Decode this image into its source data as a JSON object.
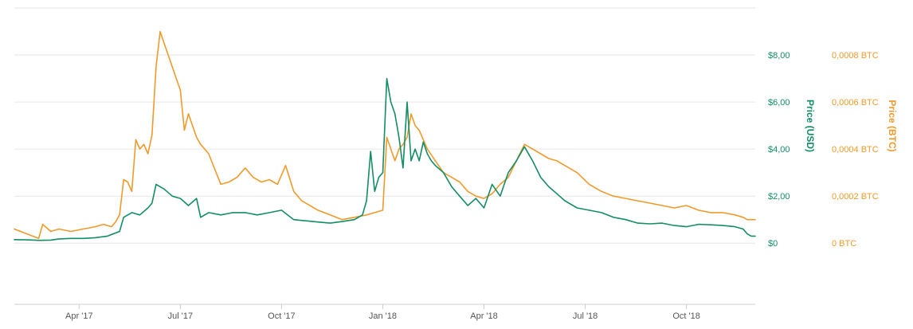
{
  "chart_data": {
    "type": "line",
    "title": "",
    "x_tick_labels": [
      "Apr '17",
      "Jul '17",
      "Oct '17",
      "Jan '18",
      "Apr '18",
      "Jul '18",
      "Oct '18"
    ],
    "x_tick_values": [
      2017.25,
      2017.5,
      2017.75,
      2018.0,
      2018.25,
      2018.5,
      2018.75
    ],
    "xlim": [
      2017.09,
      2018.92
    ],
    "y_left": {
      "label": "Price (USD)",
      "ticks": [
        0,
        2,
        4,
        6,
        8
      ],
      "tick_labels": [
        "$0",
        "$2,00",
        "$4,00",
        "$6,00",
        "$8,00"
      ],
      "ylim": [
        -2.6,
        10
      ]
    },
    "y_right": {
      "label": "Price (BTC)",
      "ticks": [
        0,
        0.0002,
        0.0004,
        0.0006,
        0.0008
      ],
      "tick_labels": [
        "0 BTC",
        "0,0002 BTC",
        "0,0004 BTC",
        "0,0006 BTC",
        "0,0008 BTC"
      ],
      "ylim": [
        -0.00026,
        0.001
      ]
    },
    "grid": true,
    "colors": {
      "usd": "#138d65",
      "btc": "#f09a2b"
    },
    "series": [
      {
        "name": "",
        "axis": "left",
        "color": "#138d65",
        "x": [
          2017.09,
          2017.12,
          2017.15,
          2017.18,
          2017.2,
          2017.23,
          2017.26,
          2017.29,
          2017.32,
          2017.35,
          2017.36,
          2017.38,
          2017.4,
          2017.42,
          2017.43,
          2017.44,
          2017.46,
          2017.48,
          2017.5,
          2017.52,
          2017.54,
          2017.55,
          2017.57,
          2017.6,
          2017.63,
          2017.66,
          2017.69,
          2017.72,
          2017.75,
          2017.78,
          2017.81,
          2017.84,
          2017.87,
          2017.9,
          2017.93,
          2017.95,
          2017.96,
          2017.97,
          2017.98,
          2017.99,
          2018.0,
          2018.01,
          2018.02,
          2018.03,
          2018.04,
          2018.05,
          2018.06,
          2018.07,
          2018.08,
          2018.09,
          2018.1,
          2018.11,
          2018.12,
          2018.13,
          2018.15,
          2018.17,
          2018.19,
          2018.21,
          2018.23,
          2018.25,
          2018.27,
          2018.29,
          2018.31,
          2018.33,
          2018.35,
          2018.37,
          2018.39,
          2018.41,
          2018.43,
          2018.45,
          2018.48,
          2018.51,
          2018.54,
          2018.57,
          2018.6,
          2018.63,
          2018.66,
          2018.69,
          2018.72,
          2018.75,
          2018.78,
          2018.81,
          2018.84,
          2018.87,
          2018.89,
          2018.9,
          2018.91,
          2018.92
        ],
        "values": [
          0.15,
          0.14,
          0.12,
          0.13,
          0.18,
          0.2,
          0.2,
          0.23,
          0.3,
          0.5,
          1.1,
          1.3,
          1.2,
          1.5,
          1.7,
          2.5,
          2.3,
          2.0,
          1.9,
          1.6,
          1.9,
          1.1,
          1.3,
          1.2,
          1.3,
          1.3,
          1.2,
          1.3,
          1.4,
          1.0,
          0.95,
          0.9,
          0.85,
          0.92,
          1.0,
          1.2,
          1.8,
          3.9,
          2.2,
          2.8,
          3.0,
          7.0,
          6.0,
          5.5,
          4.5,
          3.2,
          6.0,
          3.5,
          4.0,
          3.5,
          4.3,
          3.8,
          3.5,
          3.3,
          3.0,
          2.4,
          2.0,
          1.6,
          1.9,
          1.5,
          2.5,
          2.0,
          3.0,
          3.5,
          4.1,
          3.5,
          2.8,
          2.4,
          2.1,
          1.8,
          1.5,
          1.4,
          1.3,
          1.1,
          1.0,
          0.85,
          0.82,
          0.85,
          0.75,
          0.7,
          0.8,
          0.78,
          0.75,
          0.7,
          0.6,
          0.4,
          0.3,
          0.3
        ]
      },
      {
        "name": "",
        "axis": "right",
        "color": "#f09a2b",
        "x": [
          2017.09,
          2017.12,
          2017.15,
          2017.16,
          2017.18,
          2017.2,
          2017.23,
          2017.26,
          2017.29,
          2017.31,
          2017.33,
          2017.34,
          2017.35,
          2017.36,
          2017.37,
          2017.38,
          2017.39,
          2017.4,
          2017.41,
          2017.42,
          2017.43,
          2017.44,
          2017.45,
          2017.46,
          2017.47,
          2017.48,
          2017.49,
          2017.5,
          2017.51,
          2017.52,
          2017.53,
          2017.54,
          2017.55,
          2017.57,
          2017.6,
          2017.62,
          2017.64,
          2017.66,
          2017.68,
          2017.7,
          2017.72,
          2017.74,
          2017.76,
          2017.78,
          2017.8,
          2017.82,
          2017.84,
          2017.87,
          2017.9,
          2017.93,
          2017.96,
          2017.98,
          2018.0,
          2018.01,
          2018.02,
          2018.03,
          2018.04,
          2018.05,
          2018.06,
          2018.07,
          2018.08,
          2018.09,
          2018.11,
          2018.13,
          2018.15,
          2018.17,
          2018.19,
          2018.21,
          2018.23,
          2018.25,
          2018.27,
          2018.29,
          2018.31,
          2018.33,
          2018.35,
          2018.37,
          2018.39,
          2018.41,
          2018.43,
          2018.45,
          2018.48,
          2018.51,
          2018.54,
          2018.57,
          2018.6,
          2018.63,
          2018.66,
          2018.69,
          2018.72,
          2018.75,
          2018.78,
          2018.81,
          2018.84,
          2018.87,
          2018.89,
          2018.9,
          2018.91,
          2018.92
        ],
        "values": [
          6e-05,
          4e-05,
          2e-05,
          8e-05,
          5e-05,
          6e-05,
          5e-05,
          6e-05,
          7e-05,
          8e-05,
          7e-05,
          9e-05,
          0.00012,
          0.00027,
          0.00026,
          0.00022,
          0.00044,
          0.0004,
          0.00042,
          0.00038,
          0.00046,
          0.00075,
          0.0009,
          0.00085,
          0.0008,
          0.00075,
          0.0007,
          0.00065,
          0.00048,
          0.00055,
          0.0005,
          0.00045,
          0.00042,
          0.00038,
          0.00025,
          0.00026,
          0.00028,
          0.00032,
          0.00028,
          0.00026,
          0.00027,
          0.00025,
          0.00033,
          0.00022,
          0.00018,
          0.00016,
          0.00014,
          0.00012,
          0.0001,
          0.00011,
          0.00012,
          0.00013,
          0.00014,
          0.00045,
          0.0004,
          0.00035,
          0.0004,
          0.00042,
          0.00045,
          0.00055,
          0.0005,
          0.00048,
          0.0004,
          0.00035,
          0.0003,
          0.00028,
          0.00026,
          0.00022,
          0.0002,
          0.00019,
          0.00021,
          0.00025,
          0.00028,
          0.00035,
          0.00042,
          0.0004,
          0.00038,
          0.00036,
          0.00035,
          0.00033,
          0.0003,
          0.00025,
          0.00022,
          0.0002,
          0.00019,
          0.00018,
          0.00017,
          0.00016,
          0.00015,
          0.00016,
          0.00014,
          0.00013,
          0.00013,
          0.00012,
          0.00011,
          0.0001,
          0.0001,
          0.0001
        ]
      }
    ]
  }
}
